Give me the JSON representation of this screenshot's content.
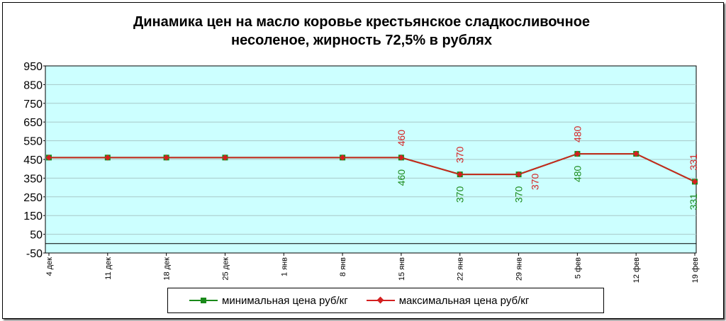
{
  "chart_data": {
    "type": "line",
    "title_line1": "Динамика цен на масло коровье крестьянское  сладкосливочное",
    "title_line2": "несоленое, жирность 72,5%  в рублях",
    "categories": [
      "4 дек",
      "11 дек",
      "18 дек",
      "25 дек",
      "1 янв",
      "8 янв",
      "15 янв",
      "22 янв",
      "29 янв",
      "5 фев",
      "12 фев",
      "19 фев"
    ],
    "yticks": [
      "950",
      "850",
      "750",
      "650",
      "550",
      "450",
      "350",
      "250",
      "150",
      "50",
      "-50"
    ],
    "ylim": [
      -50,
      950
    ],
    "grid": true,
    "legend_position": "bottom",
    "series": [
      {
        "name": "минимальная цена руб/кг",
        "color": "#1a8a1a",
        "values": [
          460,
          460,
          460,
          460,
          null,
          460,
          460,
          370,
          370,
          480,
          480,
          331
        ]
      },
      {
        "name": "максимальная цена руб/кг",
        "color": "#d42020",
        "values": [
          460,
          460,
          460,
          460,
          null,
          460,
          460,
          370,
          370,
          480,
          480,
          331
        ]
      }
    ],
    "data_labels": [
      {
        "category": "15 янв",
        "series": "max",
        "text": "460"
      },
      {
        "category": "15 янв",
        "series": "min",
        "text": "460"
      },
      {
        "category": "22 янв",
        "series": "max",
        "text": "370"
      },
      {
        "category": "22 янв",
        "series": "min",
        "text": "370"
      },
      {
        "category": "29 янв",
        "series": "max",
        "text": "370"
      },
      {
        "category": "29 янв",
        "series": "min",
        "text": "370"
      },
      {
        "category": "5 фев",
        "series": "max",
        "text": "480"
      },
      {
        "category": "5 фев",
        "series": "min",
        "text": "480"
      },
      {
        "category": "19 фев",
        "series": "max",
        "text": "331"
      },
      {
        "category": "19 фев",
        "series": "min",
        "text": "331"
      }
    ]
  }
}
